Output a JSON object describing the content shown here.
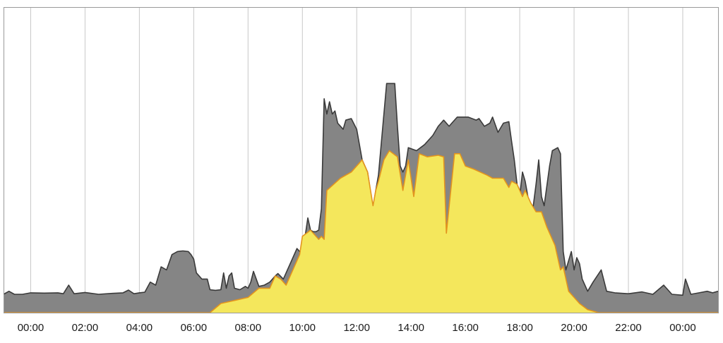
{
  "chart_data": {
    "type": "area",
    "x_unit": "hours",
    "xlim": [
      -1.0,
      25.3
    ],
    "ylim": [
      0,
      100
    ],
    "xticks": [
      0,
      2,
      4,
      6,
      8,
      10,
      12,
      14,
      16,
      18,
      20,
      22,
      24
    ],
    "xtick_labels": [
      "00:00",
      "02:00",
      "04:00",
      "06:00",
      "08:00",
      "10:00",
      "12:00",
      "14:00",
      "16:00",
      "18:00",
      "20:00",
      "22:00",
      "00:00"
    ],
    "grid": "vertical",
    "series": [
      {
        "key": "consumption",
        "color": "#858585",
        "stroke": "#3a3a3a",
        "points": [
          [
            -1.0,
            6
          ],
          [
            -0.8,
            7
          ],
          [
            -0.6,
            6
          ],
          [
            -0.3,
            6
          ],
          [
            0.0,
            6.5
          ],
          [
            0.5,
            6.4
          ],
          [
            1.0,
            6.5
          ],
          [
            1.2,
            6.2
          ],
          [
            1.4,
            9
          ],
          [
            1.6,
            6.2
          ],
          [
            2.0,
            6.6
          ],
          [
            2.5,
            6
          ],
          [
            3.0,
            6.3
          ],
          [
            3.4,
            6.5
          ],
          [
            3.6,
            7.4
          ],
          [
            3.8,
            6.2
          ],
          [
            4.0,
            6.5
          ],
          [
            4.2,
            6.7
          ],
          [
            4.4,
            10
          ],
          [
            4.6,
            9
          ],
          [
            4.8,
            15
          ],
          [
            5.0,
            14
          ],
          [
            5.2,
            19
          ],
          [
            5.4,
            20
          ],
          [
            5.6,
            20.2
          ],
          [
            5.8,
            20
          ],
          [
            5.9,
            19
          ],
          [
            6.0,
            17.5
          ],
          [
            6.1,
            13
          ],
          [
            6.3,
            11
          ],
          [
            6.5,
            11
          ],
          [
            6.6,
            7.5
          ],
          [
            6.8,
            7.3
          ],
          [
            7.0,
            7.5
          ],
          [
            7.1,
            13
          ],
          [
            7.2,
            8
          ],
          [
            7.3,
            12
          ],
          [
            7.4,
            13
          ],
          [
            7.5,
            8
          ],
          [
            7.7,
            7.5
          ],
          [
            7.9,
            8.6
          ],
          [
            8.0,
            8
          ],
          [
            8.1,
            10
          ],
          [
            8.2,
            13.5
          ],
          [
            8.4,
            8.6
          ],
          [
            8.6,
            9
          ],
          [
            8.8,
            10
          ],
          [
            9.0,
            12
          ],
          [
            9.1,
            12.8
          ],
          [
            9.3,
            11
          ],
          [
            9.4,
            13
          ],
          [
            9.6,
            17
          ],
          [
            9.8,
            21
          ],
          [
            10.0,
            19
          ],
          [
            10.2,
            31
          ],
          [
            10.3,
            27
          ],
          [
            10.4,
            26.5
          ],
          [
            10.5,
            26.5
          ],
          [
            10.6,
            27
          ],
          [
            10.7,
            34
          ],
          [
            10.8,
            70
          ],
          [
            10.9,
            65
          ],
          [
            11.0,
            69
          ],
          [
            11.1,
            65
          ],
          [
            11.2,
            66
          ],
          [
            11.3,
            62
          ],
          [
            11.5,
            60
          ],
          [
            11.6,
            63
          ],
          [
            11.8,
            63.5
          ],
          [
            12.0,
            60
          ],
          [
            12.2,
            50
          ],
          [
            12.4,
            46
          ],
          [
            12.6,
            34
          ],
          [
            12.7,
            40
          ],
          [
            12.8,
            45
          ],
          [
            13.1,
            75
          ],
          [
            13.4,
            75
          ],
          [
            13.5,
            61
          ],
          [
            13.6,
            48
          ],
          [
            13.7,
            46
          ],
          [
            13.8,
            48
          ],
          [
            13.9,
            54
          ],
          [
            14.2,
            53
          ],
          [
            14.5,
            55
          ],
          [
            14.8,
            58
          ],
          [
            15.0,
            61
          ],
          [
            15.2,
            63
          ],
          [
            15.4,
            61
          ],
          [
            15.5,
            62
          ],
          [
            15.7,
            64
          ],
          [
            16.1,
            64
          ],
          [
            16.4,
            63
          ],
          [
            16.5,
            63.5
          ],
          [
            16.7,
            61
          ],
          [
            16.9,
            62
          ],
          [
            17.0,
            64
          ],
          [
            17.2,
            59
          ],
          [
            17.4,
            62
          ],
          [
            17.6,
            62.5
          ],
          [
            17.7,
            56
          ],
          [
            17.8,
            50
          ],
          [
            17.9,
            42
          ],
          [
            18.0,
            38
          ],
          [
            18.1,
            46
          ],
          [
            18.2,
            43
          ],
          [
            18.4,
            33
          ],
          [
            18.5,
            35
          ],
          [
            18.6,
            42
          ],
          [
            18.7,
            50
          ],
          [
            18.8,
            38
          ],
          [
            18.9,
            35
          ],
          [
            19.1,
            48
          ],
          [
            19.2,
            53
          ],
          [
            19.4,
            54
          ],
          [
            19.5,
            52
          ],
          [
            19.6,
            20
          ],
          [
            19.7,
            14
          ],
          [
            19.9,
            20
          ],
          [
            20.0,
            14
          ],
          [
            20.1,
            18
          ],
          [
            20.2,
            16
          ],
          [
            20.3,
            11
          ],
          [
            20.5,
            7
          ],
          [
            20.7,
            10
          ],
          [
            21.0,
            14
          ],
          [
            21.2,
            7
          ],
          [
            21.5,
            6.5
          ],
          [
            22.0,
            6.2
          ],
          [
            22.5,
            6.8
          ],
          [
            22.9,
            6
          ],
          [
            23.3,
            9
          ],
          [
            23.6,
            6
          ],
          [
            24.0,
            5.7
          ],
          [
            24.1,
            11
          ],
          [
            24.3,
            6
          ],
          [
            24.6,
            6.5
          ],
          [
            24.9,
            7
          ],
          [
            25.1,
            6.5
          ],
          [
            25.3,
            7
          ]
        ]
      },
      {
        "key": "solar",
        "color": "#f4e75c",
        "stroke": "#e3941e",
        "points": [
          [
            -1.0,
            0
          ],
          [
            6.6,
            0
          ],
          [
            7.0,
            3
          ],
          [
            7.5,
            4
          ],
          [
            8.0,
            5
          ],
          [
            8.4,
            8
          ],
          [
            8.8,
            8
          ],
          [
            9.0,
            12
          ],
          [
            9.2,
            11
          ],
          [
            9.4,
            9
          ],
          [
            9.6,
            13
          ],
          [
            9.9,
            19
          ],
          [
            10.0,
            25
          ],
          [
            10.3,
            27
          ],
          [
            10.6,
            24
          ],
          [
            10.7,
            25
          ],
          [
            10.8,
            24
          ],
          [
            10.9,
            40
          ],
          [
            11.4,
            44
          ],
          [
            11.8,
            46
          ],
          [
            12.2,
            50
          ],
          [
            12.4,
            46
          ],
          [
            12.6,
            35
          ],
          [
            12.7,
            40
          ],
          [
            12.8,
            43
          ],
          [
            13.0,
            50
          ],
          [
            13.2,
            53
          ],
          [
            13.5,
            51
          ],
          [
            13.7,
            40
          ],
          [
            13.9,
            50
          ],
          [
            14.1,
            38
          ],
          [
            14.3,
            52
          ],
          [
            14.6,
            51
          ],
          [
            15.0,
            51.5
          ],
          [
            15.2,
            51
          ],
          [
            15.3,
            26
          ],
          [
            15.6,
            52
          ],
          [
            15.8,
            52
          ],
          [
            16.0,
            48
          ],
          [
            16.3,
            47
          ],
          [
            16.8,
            45
          ],
          [
            17.0,
            44
          ],
          [
            17.4,
            44
          ],
          [
            17.6,
            41
          ],
          [
            17.7,
            43
          ],
          [
            17.9,
            42
          ],
          [
            18.1,
            38
          ],
          [
            18.2,
            40
          ],
          [
            18.4,
            36
          ],
          [
            18.6,
            33
          ],
          [
            18.8,
            33
          ],
          [
            19.0,
            28
          ],
          [
            19.3,
            22
          ],
          [
            19.5,
            14
          ],
          [
            19.6,
            15
          ],
          [
            19.8,
            7
          ],
          [
            20.0,
            5
          ],
          [
            20.2,
            3
          ],
          [
            20.5,
            1
          ],
          [
            20.9,
            0
          ],
          [
            25.3,
            0
          ]
        ]
      }
    ]
  }
}
